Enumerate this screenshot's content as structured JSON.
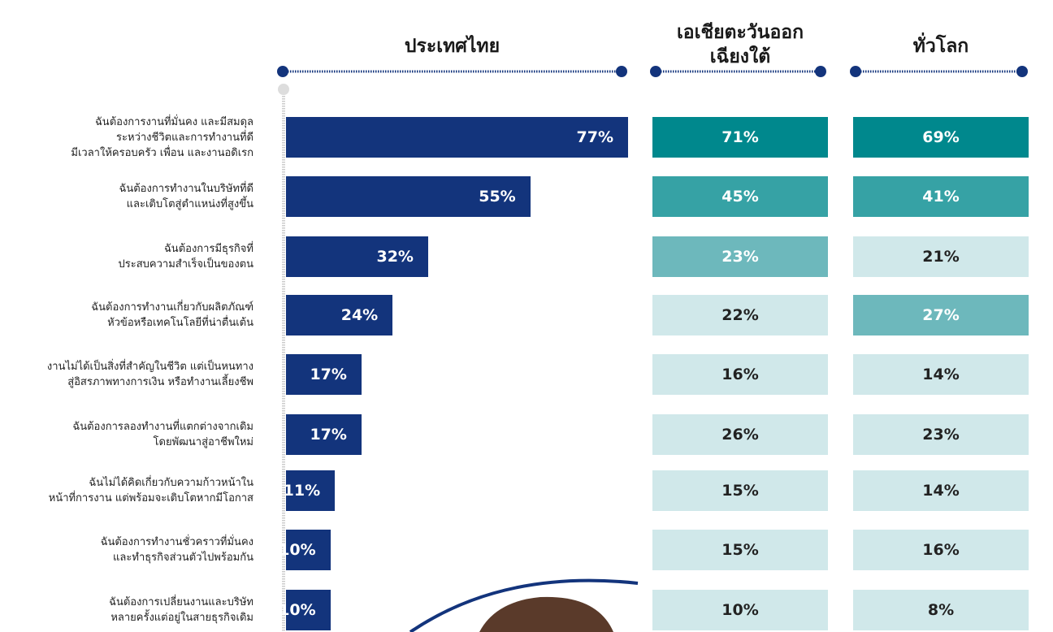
{
  "chart_data": {
    "type": "bar",
    "orientation": "horizontal",
    "xlim": [
      0,
      77
    ],
    "categories": [
      "ฉันต้องการงานที่มั่นคง และมีสมดุล\nระหว่างชีวิตและการทำงานที่ดี\nมีเวลาให้ครอบครัว เพื่อน และงานอดิเรก",
      "ฉันต้องการทำงานในบริษัทที่ดี\nและเติบโตสู่ตำแหน่งที่สูงขึ้น",
      "ฉันต้องการมีธุรกิจที่\nประสบความสำเร็จเป็นของตน",
      "ฉันต้องการทำงานเกี่ยวกับผลิตภัณฑ์\nหัวข้อหรือเทคโนโลยีที่น่าตื่นเต้น",
      "งานไม่ได้เป็นสิ่งที่สำคัญในชีวิต แต่เป็นหนทาง\nสู่อิสรภาพทางการเงิน หรือทำงานเลี้ยงชีพ",
      "ฉันต้องการลองทำงานที่แตกต่างจากเดิม\nโดยพัฒนาสู่อาชีพใหม่",
      "ฉันไม่ได้คิดเกี่ยวกับความก้าวหน้าใน\nหน้าที่การงาน แต่พร้อมจะเติบโตหากมีโอกาส",
      "ฉันต้องการทำงานชั่วคราวที่มั่นคง\nและทำธุรกิจส่วนตัวไปพร้อมกัน",
      "ฉันต้องการเปลี่ยนงานและบริษัท\nหลายครั้งแต่อยู่ในสายธุรกิจเดิม"
    ],
    "series": [
      {
        "name": "ประเทศไทย",
        "color": "#13347c",
        "values": [
          77,
          55,
          32,
          24,
          17,
          17,
          11,
          10,
          10
        ],
        "value_labels": [
          "77%",
          "55%",
          "32%",
          "24%",
          "17%",
          "17%",
          "11%",
          "10%",
          "10%"
        ]
      },
      {
        "name": "เอเชียตะวันออก\nเฉียงใต้",
        "colors": [
          "#00888d",
          "#36a2a5",
          "#6db8bc",
          "#d0e8ea",
          "#d0e8ea",
          "#d0e8ea",
          "#d0e8ea",
          "#d0e8ea",
          "#d0e8ea"
        ],
        "values": [
          71,
          45,
          23,
          22,
          16,
          26,
          15,
          15,
          10
        ],
        "value_labels": [
          "71%",
          "45%",
          "23%",
          "22%",
          "16%",
          "26%",
          "15%",
          "15%",
          "10%"
        ]
      },
      {
        "name": "ทั่วโลก",
        "colors": [
          "#00888d",
          "#36a2a5",
          "#d0e8ea",
          "#6db8bc",
          "#d0e8ea",
          "#d0e8ea",
          "#d0e8ea",
          "#d0e8ea",
          "#d0e8ea"
        ],
        "values": [
          69,
          41,
          21,
          27,
          14,
          23,
          14,
          16,
          8
        ],
        "value_labels": [
          "69%",
          "41%",
          "21%",
          "27%",
          "14%",
          "23%",
          "14%",
          "16%",
          "8%"
        ]
      }
    ]
  }
}
